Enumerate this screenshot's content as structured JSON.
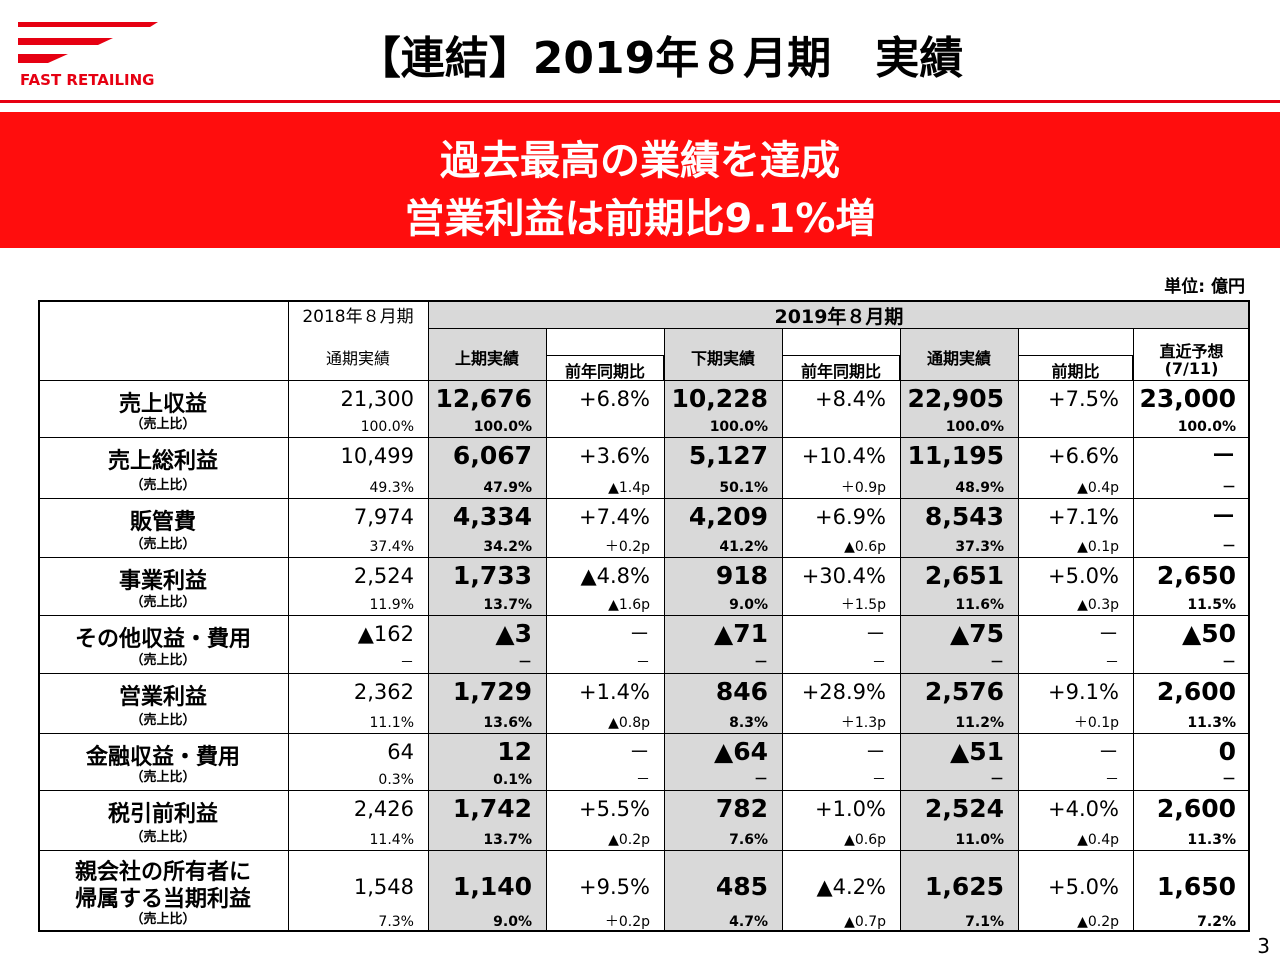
{
  "header": {
    "logo": "FAST RETAILING",
    "title": "【連結】2019年８月期　実績"
  },
  "banner": {
    "lines": [
      "過去最高の業績を達成",
      "営業利益は前期比9.1%増"
    ]
  },
  "unit": "単位: 億円",
  "table": {
    "group_headers": [
      "2018年８月期",
      "2019年８月期"
    ],
    "column_headers": [
      "通期実績",
      "上期実績",
      "前年同期比",
      "下期実績",
      "前年同期比",
      "通期実績",
      "前期比",
      [
        "直近予想",
        "(7/11)"
      ]
    ],
    "sub_label": "（売上比）",
    "rows": [
      {
        "label": [
          "売上収益"
        ],
        "values": [
          "21,300",
          "12,676",
          "+6.8%",
          "10,228",
          "+8.4%",
          "22,905",
          "+7.5%",
          "23,000"
        ],
        "ratios": [
          "100.0%",
          "100.0%",
          null,
          "100.0%",
          null,
          "100.0%",
          null,
          "100.0%"
        ]
      },
      {
        "label": [
          "売上総利益"
        ],
        "values": [
          "10,499",
          "6,067",
          "+3.6%",
          "5,127",
          "+10.4%",
          "11,195",
          "+6.6%",
          "－"
        ],
        "ratios": [
          "49.3%",
          "47.9%",
          "▲1.4p",
          "50.1%",
          "＋0.9p",
          "48.9%",
          "▲0.4p",
          "－"
        ]
      },
      {
        "label": [
          "販管費"
        ],
        "values": [
          "7,974",
          "4,334",
          "+7.4%",
          "4,209",
          "+6.9%",
          "8,543",
          "+7.1%",
          "－"
        ],
        "ratios": [
          "37.4%",
          "34.2%",
          "＋0.2p",
          "41.2%",
          "▲0.6p",
          "37.3%",
          "▲0.1p",
          "－"
        ]
      },
      {
        "label": [
          "事業利益"
        ],
        "values": [
          "2,524",
          "1,733",
          "▲4.8%",
          "918",
          "+30.4%",
          "2,651",
          "+5.0%",
          "2,650"
        ],
        "ratios": [
          "11.9%",
          "13.7%",
          "▲1.6p",
          "9.0%",
          "＋1.5p",
          "11.6%",
          "▲0.3p",
          "11.5%"
        ]
      },
      {
        "label": [
          "その他収益・費用"
        ],
        "values": [
          "▲162",
          "▲3",
          "－",
          "▲71",
          "－",
          "▲75",
          "－",
          "▲50"
        ],
        "ratios": [
          "－",
          "－",
          "－",
          "－",
          "－",
          "－",
          "－",
          "－"
        ]
      },
      {
        "label": [
          "営業利益"
        ],
        "values": [
          "2,362",
          "1,729",
          "+1.4%",
          "846",
          "+28.9%",
          "2,576",
          "+9.1%",
          "2,600"
        ],
        "ratios": [
          "11.1%",
          "13.6%",
          "▲0.8p",
          "8.3%",
          "＋1.3p",
          "11.2%",
          "＋0.1p",
          "11.3%"
        ]
      },
      {
        "label": [
          "金融収益・費用"
        ],
        "values": [
          "64",
          "12",
          "－",
          "▲64",
          "－",
          "▲51",
          "－",
          "0"
        ],
        "ratios": [
          "0.3%",
          "0.1%",
          "－",
          "－",
          "－",
          "－",
          "－",
          "－"
        ]
      },
      {
        "label": [
          "税引前利益"
        ],
        "values": [
          "2,426",
          "1,742",
          "+5.5%",
          "782",
          "+1.0%",
          "2,524",
          "+4.0%",
          "2,600"
        ],
        "ratios": [
          "11.4%",
          "13.7%",
          "▲0.2p",
          "7.6%",
          "▲0.6p",
          "11.0%",
          "▲0.4p",
          "11.3%"
        ]
      },
      {
        "label": [
          "親会社の所有者に",
          "帰属する当期利益"
        ],
        "values": [
          "1,548",
          "1,140",
          "+9.5%",
          "485",
          "▲4.2%",
          "1,625",
          "+5.0%",
          "1,650"
        ],
        "ratios": [
          "7.3%",
          "9.0%",
          "＋0.2p",
          "4.7%",
          "▲0.7p",
          "7.1%",
          "▲0.2p",
          "7.2%"
        ]
      }
    ]
  },
  "page_number": "3"
}
